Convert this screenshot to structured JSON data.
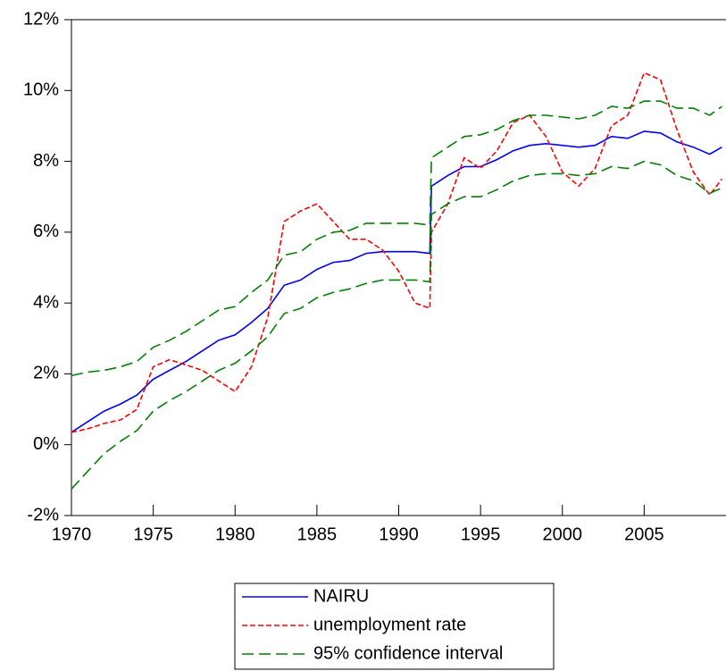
{
  "chart_data": {
    "type": "line",
    "x": [
      1970,
      1971,
      1972,
      1973,
      1974,
      1975,
      1976,
      1977,
      1978,
      1979,
      1980,
      1981,
      1982,
      1983,
      1984,
      1985,
      1986,
      1987,
      1988,
      1989,
      1990,
      1991,
      1991.9,
      1992,
      1993,
      1994,
      1995,
      1996,
      1997,
      1998,
      1999,
      2000,
      2001,
      2002,
      2003,
      2004,
      2005,
      2006,
      2007,
      2008,
      2009,
      2009.75
    ],
    "xlim": [
      1970,
      2010
    ],
    "xticks": [
      1970,
      1975,
      1980,
      1985,
      1990,
      1995,
      2000,
      2005
    ],
    "ylim": [
      -2,
      12
    ],
    "yticks": [
      {
        "value": -2,
        "label": "-2%"
      },
      {
        "value": 0,
        "label": "0%"
      },
      {
        "value": 2,
        "label": "2%"
      },
      {
        "value": 4,
        "label": "4%"
      },
      {
        "value": 6,
        "label": "6%"
      },
      {
        "value": 8,
        "label": "8%"
      },
      {
        "value": 10,
        "label": "10%"
      },
      {
        "value": 12,
        "label": "12%"
      }
    ],
    "legend": "bottom",
    "series": [
      {
        "name": "NAIRU",
        "color": "#0000ff",
        "style": "solid",
        "values": [
          0.35,
          0.65,
          0.95,
          1.15,
          1.4,
          1.85,
          2.1,
          2.35,
          2.65,
          2.95,
          3.1,
          3.45,
          3.85,
          4.5,
          4.65,
          4.95,
          5.15,
          5.2,
          5.4,
          5.45,
          5.45,
          5.45,
          5.4,
          7.3,
          7.6,
          7.85,
          7.85,
          8.05,
          8.3,
          8.45,
          8.5,
          8.45,
          8.4,
          8.45,
          8.7,
          8.65,
          8.85,
          8.8,
          8.55,
          8.4,
          8.2,
          8.4
        ]
      },
      {
        "name": "unemployment rate",
        "color": "#ff0000",
        "style": "dashed",
        "values": [
          0.35,
          0.45,
          0.6,
          0.7,
          1.0,
          2.2,
          2.4,
          2.25,
          2.1,
          1.8,
          1.5,
          2.2,
          3.6,
          6.3,
          6.6,
          6.8,
          6.3,
          5.8,
          5.8,
          5.5,
          4.9,
          4.0,
          3.85,
          6.0,
          6.8,
          8.1,
          7.8,
          8.3,
          9.1,
          9.3,
          8.7,
          7.7,
          7.3,
          7.8,
          9.0,
          9.3,
          10.5,
          10.3,
          8.9,
          7.7,
          7.05,
          7.5
        ]
      },
      {
        "name": "95% confidence interval",
        "color": "#008000",
        "style": "longdash",
        "upper": [
          1.95,
          2.05,
          2.1,
          2.2,
          2.35,
          2.75,
          2.95,
          3.2,
          3.5,
          3.8,
          3.9,
          4.3,
          4.65,
          5.35,
          5.45,
          5.8,
          6.0,
          6.05,
          6.25,
          6.25,
          6.25,
          6.25,
          6.2,
          8.1,
          8.4,
          8.7,
          8.75,
          8.9,
          9.15,
          9.3,
          9.3,
          9.25,
          9.2,
          9.3,
          9.55,
          9.5,
          9.7,
          9.7,
          9.5,
          9.5,
          9.3,
          9.55
        ],
        "lower": [
          -1.25,
          -0.75,
          -0.25,
          0.1,
          0.4,
          0.95,
          1.25,
          1.5,
          1.8,
          2.1,
          2.3,
          2.65,
          3.05,
          3.7,
          3.85,
          4.15,
          4.3,
          4.4,
          4.55,
          4.65,
          4.65,
          4.65,
          4.6,
          6.5,
          6.8,
          7.0,
          7.0,
          7.2,
          7.45,
          7.6,
          7.65,
          7.65,
          7.6,
          7.65,
          7.85,
          7.8,
          8.0,
          7.9,
          7.6,
          7.45,
          7.1,
          7.25
        ]
      }
    ]
  }
}
